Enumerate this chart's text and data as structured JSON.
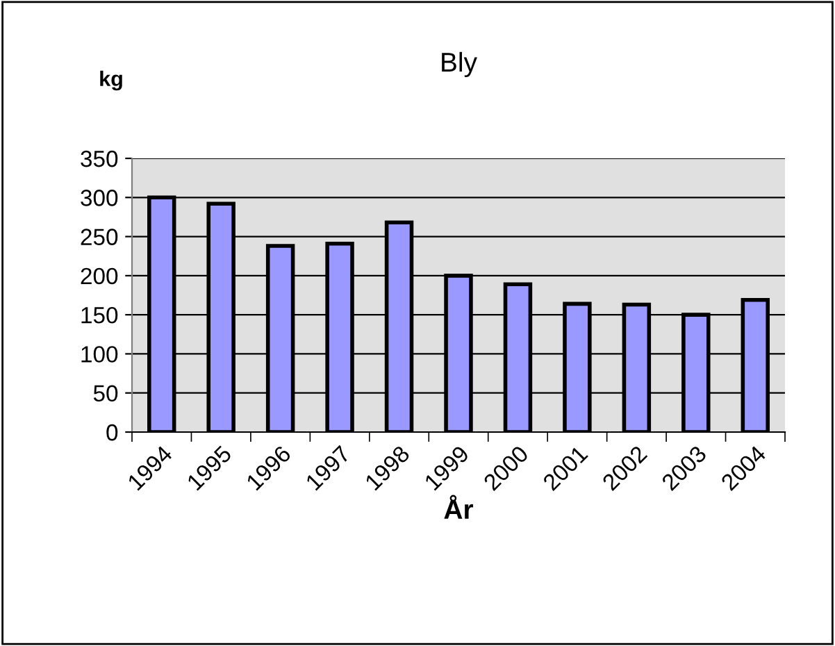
{
  "chart_data": {
    "type": "bar",
    "title": "Bly",
    "ylabel": "kg",
    "xlabel": "År",
    "categories": [
      "1994",
      "1995",
      "1996",
      "1997",
      "1998",
      "1999",
      "2000",
      "2001",
      "2002",
      "2003",
      "2004"
    ],
    "values": [
      300,
      292,
      238,
      241,
      268,
      200,
      189,
      164,
      163,
      150,
      169
    ],
    "color": "#9999ff",
    "ylim": [
      0,
      350
    ],
    "yticks": [
      0,
      50,
      100,
      150,
      200,
      250,
      300,
      350
    ],
    "grid": "y"
  }
}
